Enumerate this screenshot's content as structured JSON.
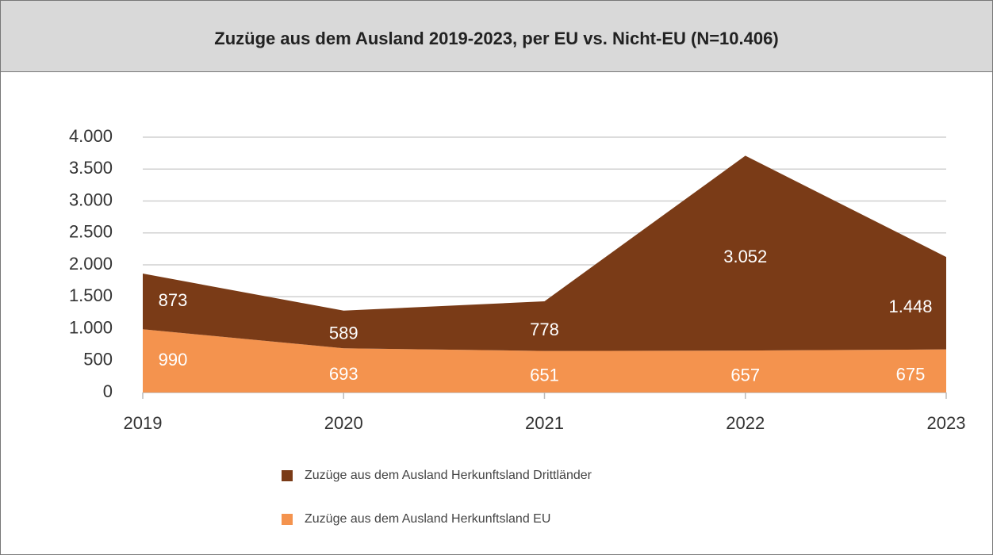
{
  "chart_data": {
    "type": "area",
    "stacked": true,
    "title": "Zuzüge aus dem Ausland 2019-2023, per EU vs. Nicht-EU (N=10.406)",
    "categories": [
      "2019",
      "2020",
      "2021",
      "2022",
      "2023"
    ],
    "series": [
      {
        "name": "Zuzüge aus dem Ausland Herkunftsland Drittländer",
        "color": "#7a3b17",
        "values": [
          873,
          589,
          778,
          3052,
          1448
        ],
        "value_labels": [
          "873",
          "589",
          "778",
          "3.052",
          "1.448"
        ]
      },
      {
        "name": "Zuzüge aus dem Ausland Herkunftsland EU",
        "color": "#f4934e",
        "values": [
          990,
          693,
          651,
          657,
          675
        ]
      }
    ],
    "ylim": [
      0,
      4000
    ],
    "yticks": [
      0,
      500,
      {
        "value": 1000,
        "label": "1.000"
      },
      {
        "value": 1500,
        "label": "1.500"
      },
      {
        "value": 2000,
        "label": "2.000"
      },
      {
        "value": 2500,
        "label": "2.500"
      },
      {
        "value": 3000,
        "label": "3.000"
      },
      {
        "value": 3500,
        "label": "3.500"
      },
      {
        "value": 4000,
        "label": "4.000"
      }
    ],
    "grid": true,
    "legend": "bottom"
  }
}
